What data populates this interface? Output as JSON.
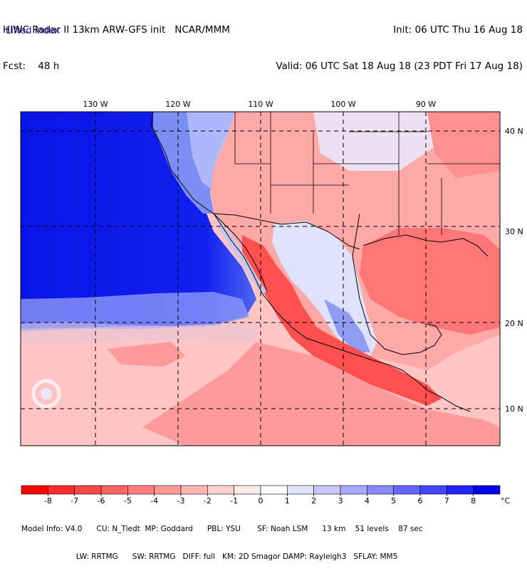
{
  "header": {
    "line1_left": "HIWC Radar II 13km ARW-GFS init   NCAR/MMM",
    "line2_left": "Fcst:    48 h",
    "line1_right": "Init: 06 UTC Thu 16 Aug 18",
    "line2_right": "Valid: 06 UTC Sat 18 Aug 18 (23 PDT Fri 17 Aug 18)",
    "field": "Lifted index"
  },
  "longitude_labels": [
    "130 W",
    "120 W",
    "110 W",
    "100 W",
    "90 W"
  ],
  "latitude_labels": [
    "40 N",
    "30 N",
    "20 N",
    "10 N"
  ],
  "colorbar": {
    "ticks": [
      "-8",
      "-7",
      "-6",
      "-5",
      "-4",
      "-3",
      "-2",
      "-1",
      "0",
      "1",
      "2",
      "3",
      "4",
      "5",
      "6",
      "7",
      "8"
    ],
    "unit": "°C",
    "colors": [
      "#ff0000",
      "#ff2a2a",
      "#ff4646",
      "#ff6262",
      "#ff7d7d",
      "#ff9898",
      "#ffb4b4",
      "#ffd0d0",
      "#ffeaea",
      "#ffffff",
      "#e4e4ff",
      "#c8c8ff",
      "#a8a8ff",
      "#8888ff",
      "#6666ff",
      "#4444ff",
      "#2222ff",
      "#0000e8"
    ]
  },
  "footer": {
    "line1": "Model Info: V4.0      CU: N_Tiedt  MP: Goddard      PBL: YSU       SF: Noah LSM      13 km    51 levels    87 sec",
    "line2": "                       LW: RRTMG      SW: RRTMG   DIFF: full   KM: 2D Smagor DAMP: Rayleigh3   SFLAY: MM5"
  },
  "colors": {
    "ocean_stable": "#0a14e6",
    "ocean_mid": "#4a5af0",
    "land_unstable": "#ff8c8c",
    "tropics": "#ffbcbc"
  }
}
